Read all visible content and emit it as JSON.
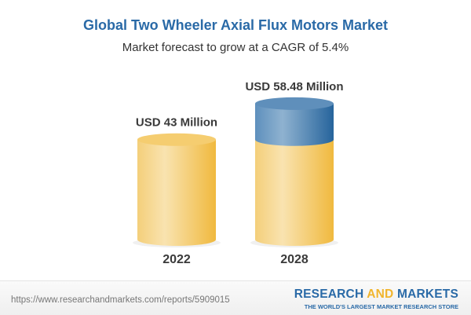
{
  "chart_data": {
    "type": "bar",
    "title": "Global Two Wheeler Axial Flux Motors Market",
    "subtitle": "Market forecast to grow at a CAGR of 5.4%",
    "categories": [
      "2022",
      "2028"
    ],
    "values": [
      43,
      58.48
    ],
    "data_labels": [
      "USD 43 Million",
      "USD 58.48 Million"
    ],
    "unit": "USD Million",
    "colors": {
      "base": "#f3c45a",
      "growth": "#3f7fb3"
    }
  },
  "footer": {
    "url": "https://www.researchandmarkets.com/reports/5909015",
    "logo_part1": "RESEARCH ",
    "logo_part2": "AND",
    "logo_part3": " MARKETS",
    "tagline": "THE WORLD'S LARGEST MARKET RESEARCH STORE"
  }
}
